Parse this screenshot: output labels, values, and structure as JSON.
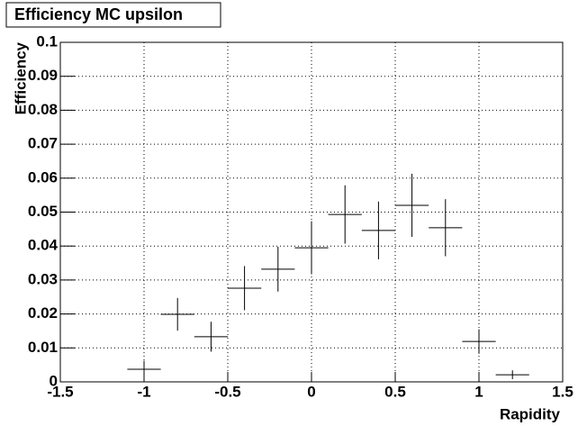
{
  "chart_data": {
    "type": "errorbar",
    "title": "Efficiency MC upsilon",
    "x_label": "Rapidity",
    "y_label": "Efficiency",
    "x": [
      -1.4,
      -1.0,
      -0.8,
      -0.6,
      -0.4,
      -0.2,
      0.0,
      0.2,
      0.4,
      0.6,
      0.8,
      1.0,
      1.2
    ],
    "xerr": [
      0.1,
      0.1,
      0.1,
      0.1,
      0.1,
      0.1,
      0.1,
      0.1,
      0.1,
      0.1,
      0.1,
      0.1,
      0.1
    ],
    "values": [
      0,
      0.0037,
      0.0199,
      0.0133,
      0.0276,
      0.0332,
      0.0395,
      0.0493,
      0.0446,
      0.052,
      0.0454,
      0.0119,
      0.0021
    ],
    "yerr": [
      0,
      0.0025,
      0.0048,
      0.0044,
      0.0065,
      0.0066,
      0.0078,
      0.0086,
      0.0085,
      0.0093,
      0.0084,
      0.0036,
      0.0013
    ],
    "color": "#000000",
    "xlim": [
      -1.5,
      1.5
    ],
    "xticks": [
      -1.5,
      -1,
      -0.5,
      0,
      0.5,
      1,
      1.5
    ],
    "ylim": [
      0,
      0.1
    ],
    "yticks": [
      0,
      0.01,
      0.02,
      0.03,
      0.04,
      0.05,
      0.06,
      0.07,
      0.08,
      0.09,
      0.1
    ],
    "grid": true
  }
}
